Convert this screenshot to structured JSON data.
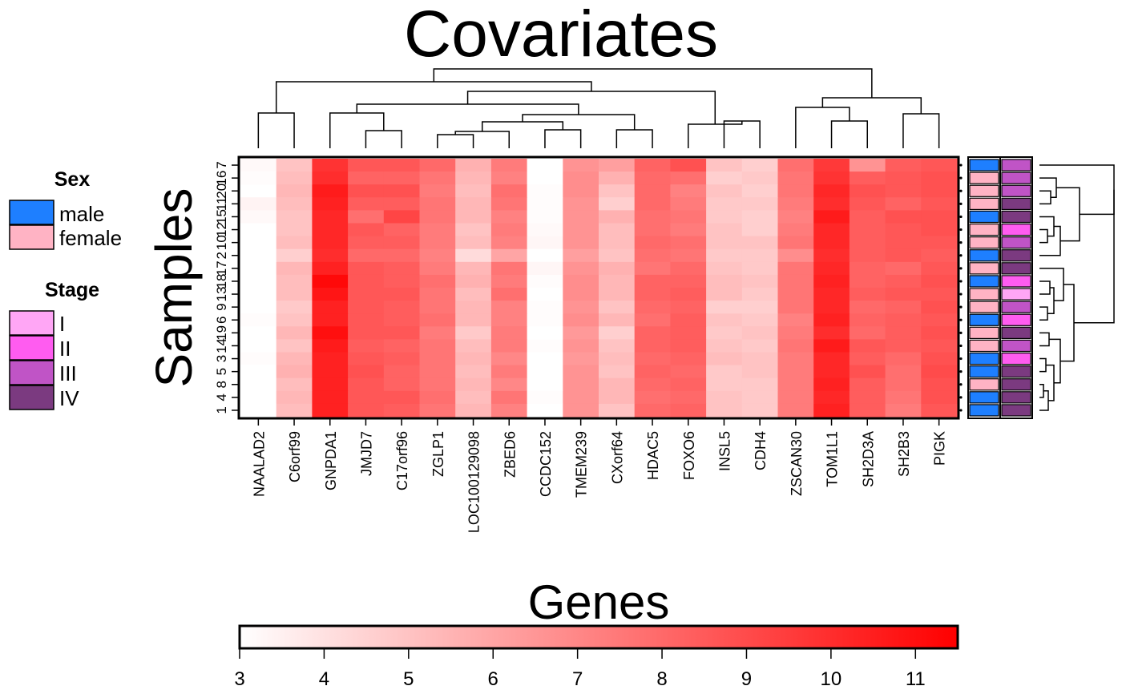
{
  "chart_data": {
    "type": "heatmap",
    "title": "Covariates",
    "xlabel": "Genes",
    "ylabel": "Samples",
    "genes": [
      "NAALAD2",
      "C6orf99",
      "GNPDA1",
      "JMJD7",
      "C17orf96",
      "ZGLP1",
      "LOC100129098",
      "ZBED6",
      "CCDC152",
      "TMEM239",
      "CXorf64",
      "HDAC5",
      "FOXO6",
      "INSL5",
      "CDH4",
      "ZSCAN30",
      "TOM1L1",
      "SH2D3A",
      "SH2B3",
      "PIGK"
    ],
    "samples": [
      "7",
      "16",
      "20",
      "11",
      "15",
      "12",
      "10",
      "2",
      "17",
      "18",
      "13",
      "9",
      "6",
      "19",
      "14",
      "3",
      "5",
      "8",
      "4",
      "1"
    ],
    "values": [
      [
        3.2,
        5.0,
        9.8,
        8.6,
        8.6,
        8.0,
        5.6,
        7.4,
        3.0,
        6.6,
        6.2,
        8.2,
        8.8,
        5.0,
        4.6,
        7.8,
        9.6,
        6.6,
        8.4,
        8.6
      ],
      [
        3.1,
        5.2,
        10.0,
        8.2,
        8.2,
        7.6,
        5.4,
        7.2,
        3.0,
        6.8,
        5.6,
        8.0,
        7.8,
        4.6,
        4.8,
        7.6,
        9.8,
        8.4,
        8.6,
        8.8
      ],
      [
        3.0,
        5.4,
        10.6,
        8.8,
        8.8,
        7.4,
        5.2,
        7.8,
        3.1,
        6.8,
        5.0,
        8.0,
        7.2,
        5.0,
        4.6,
        7.6,
        10.2,
        8.8,
        8.6,
        8.8
      ],
      [
        3.4,
        5.2,
        10.4,
        8.4,
        8.4,
        7.6,
        5.4,
        7.6,
        3.1,
        6.6,
        4.6,
        8.0,
        7.4,
        4.8,
        4.8,
        7.4,
        10.0,
        8.6,
        8.2,
        8.6
      ],
      [
        3.2,
        5.0,
        10.2,
        7.8,
        9.2,
        7.6,
        5.4,
        7.2,
        3.1,
        6.6,
        5.6,
        7.8,
        7.6,
        4.8,
        4.6,
        7.2,
        10.6,
        8.4,
        8.8,
        8.8
      ],
      [
        3.0,
        5.0,
        10.2,
        8.6,
        8.2,
        7.4,
        5.0,
        7.4,
        3.2,
        6.6,
        5.2,
        7.8,
        7.4,
        5.0,
        4.6,
        7.4,
        10.2,
        8.4,
        8.6,
        8.8
      ],
      [
        3.0,
        5.2,
        10.2,
        8.4,
        8.4,
        7.4,
        5.2,
        7.2,
        3.3,
        6.6,
        5.2,
        8.0,
        7.8,
        5.0,
        5.0,
        7.6,
        10.2,
        8.4,
        8.6,
        8.6
      ],
      [
        3.0,
        4.6,
        10.0,
        8.0,
        8.0,
        7.2,
        4.2,
        6.0,
        3.0,
        6.2,
        5.0,
        7.8,
        7.6,
        4.8,
        4.8,
        6.8,
        10.0,
        8.4,
        8.6,
        8.4
      ],
      [
        3.0,
        5.4,
        10.4,
        8.6,
        8.4,
        7.4,
        5.4,
        7.6,
        3.3,
        6.6,
        5.6,
        7.6,
        8.0,
        5.0,
        4.8,
        7.6,
        10.2,
        8.2,
        8.0,
        8.6
      ],
      [
        3.0,
        5.2,
        11.2,
        8.6,
        8.4,
        7.8,
        5.6,
        7.4,
        3.1,
        6.8,
        5.4,
        8.2,
        8.2,
        5.2,
        5.0,
        7.6,
        10.4,
        8.2,
        8.4,
        8.8
      ],
      [
        3.0,
        5.2,
        10.8,
        8.6,
        8.6,
        7.6,
        5.2,
        7.8,
        3.0,
        6.8,
        5.4,
        8.2,
        8.4,
        5.2,
        4.8,
        7.6,
        10.2,
        8.4,
        8.6,
        8.6
      ],
      [
        3.0,
        4.8,
        10.4,
        8.6,
        8.4,
        7.6,
        5.4,
        7.2,
        3.1,
        6.6,
        5.0,
        8.0,
        8.2,
        4.6,
        4.6,
        7.6,
        10.2,
        8.0,
        8.2,
        8.8
      ],
      [
        3.1,
        5.0,
        10.4,
        8.6,
        8.4,
        7.8,
        5.4,
        7.2,
        3.1,
        6.8,
        5.4,
        7.8,
        8.4,
        5.0,
        4.8,
        7.2,
        10.4,
        8.2,
        8.4,
        8.6
      ],
      [
        3.0,
        5.4,
        11.0,
        8.6,
        8.6,
        7.4,
        4.8,
        7.4,
        3.0,
        6.4,
        4.6,
        8.2,
        8.4,
        4.8,
        5.0,
        7.4,
        10.0,
        8.0,
        8.4,
        8.8
      ],
      [
        3.0,
        5.0,
        10.6,
        8.4,
        8.2,
        7.6,
        5.2,
        7.4,
        3.1,
        6.6,
        5.0,
        8.2,
        8.4,
        5.0,
        4.8,
        7.6,
        10.6,
        8.6,
        8.4,
        8.6
      ],
      [
        3.1,
        5.4,
        10.4,
        8.6,
        8.4,
        7.6,
        5.4,
        7.0,
        3.0,
        6.4,
        5.2,
        8.0,
        8.2,
        5.2,
        5.0,
        7.4,
        10.2,
        8.4,
        8.0,
        8.8
      ],
      [
        3.0,
        5.6,
        10.4,
        8.8,
        8.2,
        7.6,
        5.2,
        7.4,
        3.0,
        6.6,
        5.0,
        8.2,
        8.0,
        4.8,
        5.0,
        7.4,
        10.2,
        8.8,
        7.8,
        9.0
      ],
      [
        3.0,
        5.2,
        10.4,
        8.6,
        8.2,
        7.6,
        5.4,
        7.0,
        3.0,
        6.6,
        5.4,
        8.0,
        8.2,
        4.8,
        4.8,
        7.4,
        10.4,
        8.4,
        7.8,
        8.8
      ],
      [
        3.0,
        5.4,
        10.4,
        8.6,
        8.6,
        7.8,
        5.2,
        7.6,
        3.1,
        6.6,
        5.4,
        7.8,
        8.0,
        5.0,
        4.8,
        7.4,
        10.2,
        8.4,
        7.6,
        8.8
      ],
      [
        3.0,
        5.2,
        10.4,
        8.6,
        8.4,
        7.6,
        5.4,
        7.2,
        3.0,
        6.6,
        5.0,
        8.0,
        8.2,
        5.0,
        4.8,
        7.4,
        10.4,
        8.4,
        7.4,
        8.6
      ]
    ],
    "color_scale": {
      "min": 3,
      "max": 11.5,
      "low_color": "#ffffff",
      "high_color": "#ff0000",
      "ticks": [
        3,
        4,
        5,
        6,
        7,
        8,
        9,
        10,
        11
      ]
    },
    "covariates": {
      "sex": [
        "male",
        "female",
        "female",
        "female",
        "male",
        "female",
        "female",
        "male",
        "female",
        "male",
        "female",
        "female",
        "male",
        "female",
        "female",
        "male",
        "male",
        "female",
        "male",
        "male"
      ],
      "stage": [
        "III",
        "III",
        "III",
        "IV",
        "IV",
        "II",
        "III",
        "IV",
        "IV",
        "II",
        "I",
        "III",
        "II",
        "IV",
        "III",
        "II",
        "IV",
        "IV",
        "IV",
        "IV"
      ]
    }
  },
  "legend": {
    "sex": {
      "title": "Sex",
      "items": [
        {
          "label": "male",
          "color": "#1e7fff"
        },
        {
          "label": "female",
          "color": "#ffb3c4"
        }
      ]
    },
    "stage": {
      "title": "Stage",
      "items": [
        {
          "label": "I",
          "color": "#ffa6f5"
        },
        {
          "label": "II",
          "color": "#ff5cf0"
        },
        {
          "label": "III",
          "color": "#c054c6"
        },
        {
          "label": "IV",
          "color": "#7b3a80"
        }
      ]
    }
  }
}
